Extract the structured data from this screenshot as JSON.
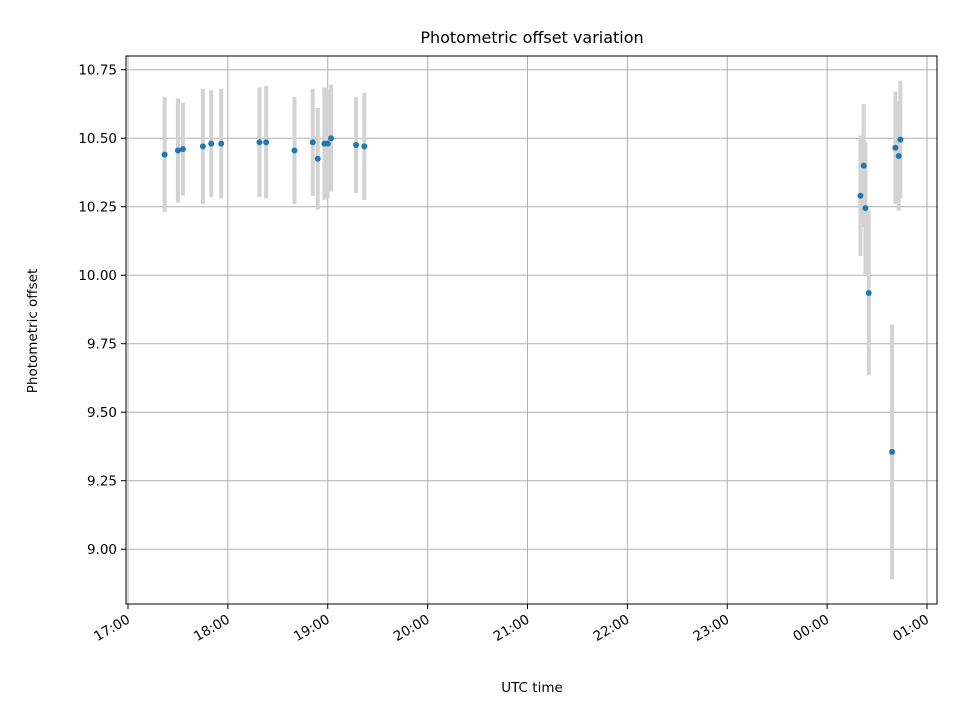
{
  "chart_data": {
    "type": "scatter",
    "title": "Photometric offset variation",
    "xlabel": "UTC time",
    "ylabel": "Photometric offset",
    "x_axis": {
      "kind": "time",
      "range_hours_from_1700": [
        -0.02,
        8.1
      ],
      "ticks": [
        {
          "hour": 0,
          "label": "17:00"
        },
        {
          "hour": 1,
          "label": "18:00"
        },
        {
          "hour": 2,
          "label": "19:00"
        },
        {
          "hour": 3,
          "label": "20:00"
        },
        {
          "hour": 4,
          "label": "21:00"
        },
        {
          "hour": 5,
          "label": "22:00"
        },
        {
          "hour": 6,
          "label": "23:00"
        },
        {
          "hour": 7,
          "label": "00:00"
        },
        {
          "hour": 8,
          "label": "01:00"
        }
      ]
    },
    "y_axis": {
      "range": [
        8.8,
        10.8
      ],
      "ticks": [
        {
          "value": 9.0,
          "label": "9.00"
        },
        {
          "value": 9.25,
          "label": "9.25"
        },
        {
          "value": 9.5,
          "label": "9.50"
        },
        {
          "value": 9.75,
          "label": "9.75"
        },
        {
          "value": 10.0,
          "label": "10.00"
        },
        {
          "value": 10.25,
          "label": "10.25"
        },
        {
          "value": 10.5,
          "label": "10.50"
        },
        {
          "value": 10.75,
          "label": "10.75"
        }
      ]
    },
    "grid": true,
    "colors": {
      "points": "#1f77b4",
      "errorbars": "#d3d3d3",
      "grid": "#b0b0b0"
    },
    "points": [
      {
        "time": "17:22",
        "y": 10.44,
        "err": 0.21
      },
      {
        "time": "17:30",
        "y": 10.455,
        "err": 0.19
      },
      {
        "time": "17:33",
        "y": 10.46,
        "err": 0.17
      },
      {
        "time": "17:45",
        "y": 10.47,
        "err": 0.21
      },
      {
        "time": "17:50",
        "y": 10.48,
        "err": 0.195
      },
      {
        "time": "17:56",
        "y": 10.48,
        "err": 0.2
      },
      {
        "time": "18:19",
        "y": 10.485,
        "err": 0.2
      },
      {
        "time": "18:23",
        "y": 10.485,
        "err": 0.205
      },
      {
        "time": "18:40",
        "y": 10.455,
        "err": 0.195
      },
      {
        "time": "18:51",
        "y": 10.485,
        "err": 0.195
      },
      {
        "time": "18:54",
        "y": 10.425,
        "err": 0.185
      },
      {
        "time": "18:58",
        "y": 10.48,
        "err": 0.205
      },
      {
        "time": "19:00",
        "y": 10.48,
        "err": 0.2
      },
      {
        "time": "19:02",
        "y": 10.5,
        "err": 0.195
      },
      {
        "time": "19:17",
        "y": 10.475,
        "err": 0.175
      },
      {
        "time": "19:22",
        "y": 10.47,
        "err": 0.195
      },
      {
        "time": "00:20",
        "y": 10.29,
        "err": 0.22
      },
      {
        "time": "00:22",
        "y": 10.4,
        "err": 0.225
      },
      {
        "time": "00:23",
        "y": 10.245,
        "err": 0.24
      },
      {
        "time": "00:25",
        "y": 9.935,
        "err": 0.3
      },
      {
        "time": "00:39",
        "y": 9.355,
        "err": 0.465
      },
      {
        "time": "00:41",
        "y": 10.465,
        "err": 0.205
      },
      {
        "time": "00:43",
        "y": 10.435,
        "err": 0.2
      },
      {
        "time": "00:44",
        "y": 10.495,
        "err": 0.215
      }
    ]
  }
}
